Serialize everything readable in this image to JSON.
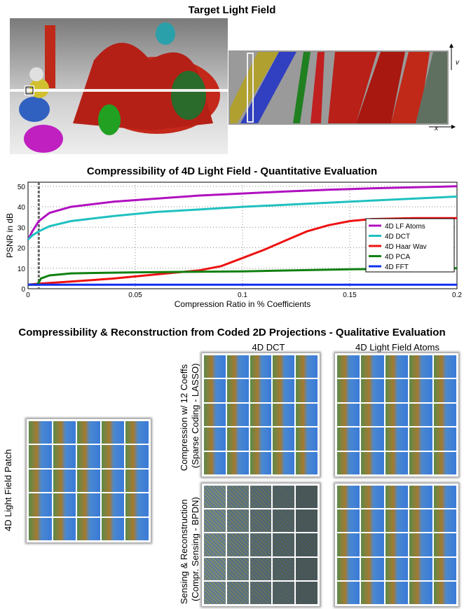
{
  "section1": {
    "title": "Target Light Field",
    "axis_v": "v",
    "axis_x": "x"
  },
  "section2": {
    "title": "Compressibility of 4D Light Field - Quantitative Evaluation"
  },
  "section3": {
    "title": "Compressibility & Reconstruction from Coded 2D Projections - Qualitative Evaluation",
    "col_dct": "4D DCT",
    "col_atoms": "4D Light Field Atoms",
    "row_patch": "4D Light Field Patch",
    "row_compression_1": "Compression w/ 12 Coeffs",
    "row_compression_2": "(Sparse Coding - LASSO)",
    "row_sensing_1": "Sensing & Reconstruction",
    "row_sensing_2": "(Compr. Sensing - BPDN)"
  },
  "colors": {
    "atoms": "#b010c0",
    "dct": "#20c0c0",
    "haar": "#ee1111",
    "pca": "#108010",
    "fft": "#1030ee"
  },
  "chart_data": {
    "type": "line",
    "title": "Compressibility of 4D Light Field - Quantitative Evaluation",
    "xlabel": "Compression Ratio in % Coefficients",
    "ylabel": "PSNR in dB",
    "xlim": [
      0,
      0.2
    ],
    "ylim": [
      0,
      52
    ],
    "xticks": [
      "0",
      "0.05",
      "0.1",
      "0.15",
      "0.2"
    ],
    "yticks": [
      "0",
      "10",
      "20",
      "30",
      "40",
      "50"
    ],
    "xtick_values": [
      0,
      0.05,
      0.1,
      0.15,
      0.2
    ],
    "ytick_values": [
      0,
      10,
      20,
      30,
      40,
      50
    ],
    "grid": true,
    "legend_position": "right",
    "marker_line_x": 0.005,
    "series": [
      {
        "name": "4D LF Atoms",
        "color": "#b010c0",
        "x": [
          0,
          0.002,
          0.005,
          0.01,
          0.02,
          0.04,
          0.06,
          0.08,
          0.1,
          0.12,
          0.14,
          0.16,
          0.18,
          0.2
        ],
        "y": [
          24,
          28,
          33,
          37,
          40,
          42.5,
          44,
          45.5,
          46.5,
          47.5,
          48.3,
          49,
          49.5,
          50
        ]
      },
      {
        "name": "4D DCT",
        "color": "#20c0c0",
        "x": [
          0,
          0.002,
          0.005,
          0.01,
          0.02,
          0.04,
          0.06,
          0.08,
          0.1,
          0.12,
          0.14,
          0.16,
          0.18,
          0.2
        ],
        "y": [
          24,
          26,
          28,
          30.5,
          33,
          35.5,
          37.5,
          38.7,
          40,
          41,
          42,
          43,
          44,
          45
        ]
      },
      {
        "name": "4D Haar Wav",
        "color": "#ee1111",
        "x": [
          0,
          0.005,
          0.02,
          0.04,
          0.06,
          0.08,
          0.09,
          0.1,
          0.11,
          0.12,
          0.13,
          0.14,
          0.15,
          0.16,
          0.18,
          0.2
        ],
        "y": [
          2,
          2.5,
          3.5,
          5,
          7,
          9,
          11,
          15,
          19,
          23.5,
          28,
          31,
          33,
          34,
          34.5,
          34.5
        ]
      },
      {
        "name": "4D PCA",
        "color": "#108010",
        "x": [
          0,
          0.004,
          0.005,
          0.006,
          0.01,
          0.02,
          0.05,
          0.1,
          0.15,
          0.2
        ],
        "y": [
          2,
          2,
          3,
          5,
          6.5,
          7.5,
          8,
          8.5,
          9.5,
          10
        ]
      },
      {
        "name": "4D FFT",
        "color": "#1030ee",
        "x": [
          0,
          0.2
        ],
        "y": [
          2,
          2
        ]
      }
    ]
  }
}
